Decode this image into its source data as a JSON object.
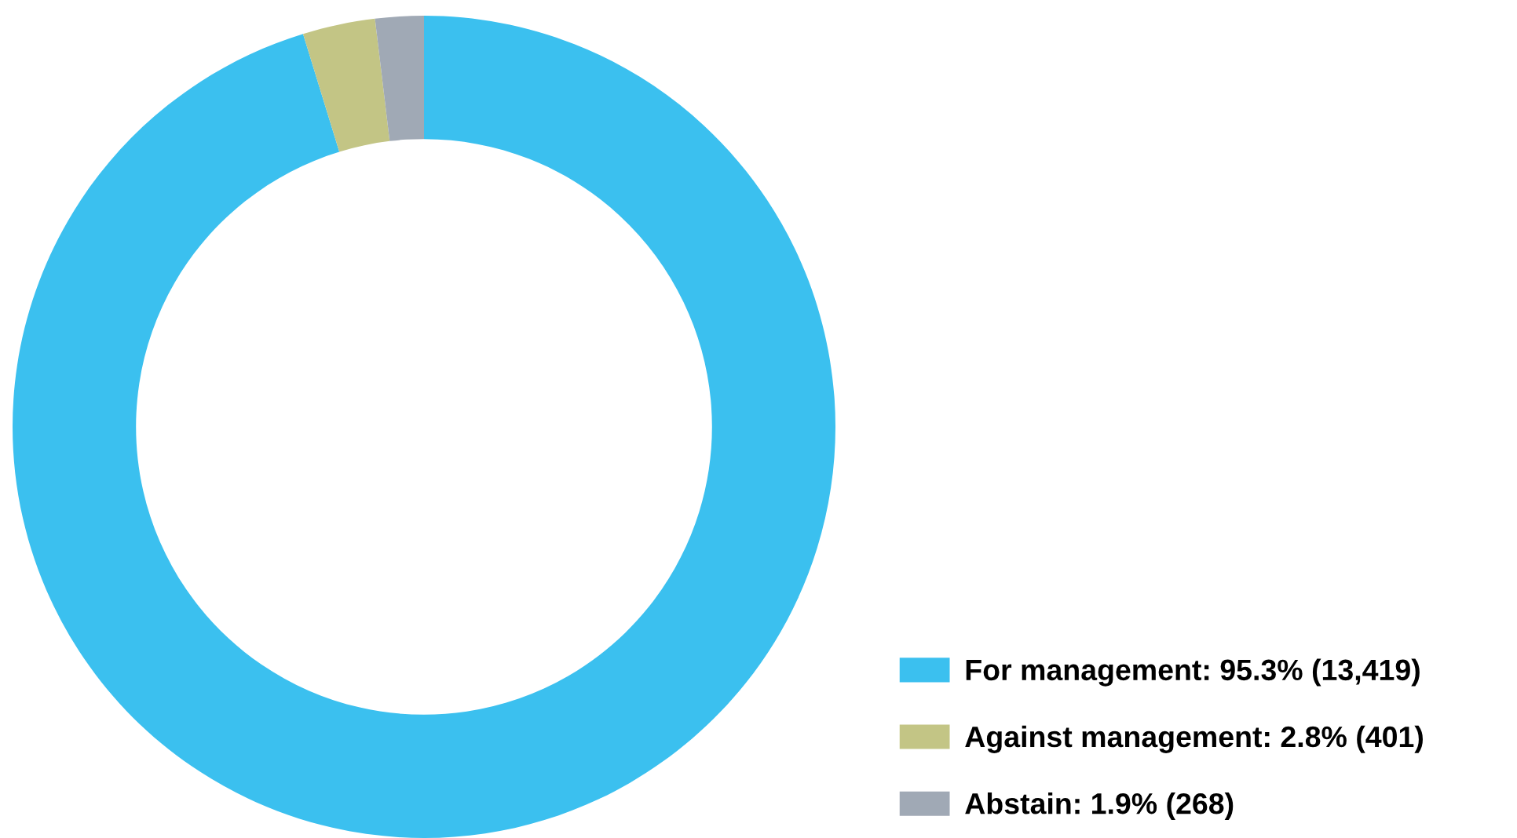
{
  "chart_data": {
    "type": "donut",
    "categories": [
      "For management: 95.3% (13,419)",
      "Against management: 2.8% (401)",
      "Abstain: 1.9% (268)"
    ],
    "values": [
      13419,
      401,
      268
    ],
    "colors": [
      "#3bc0ef",
      "#c3c585",
      "#a0a9b5"
    ],
    "legend": "bottom right"
  }
}
